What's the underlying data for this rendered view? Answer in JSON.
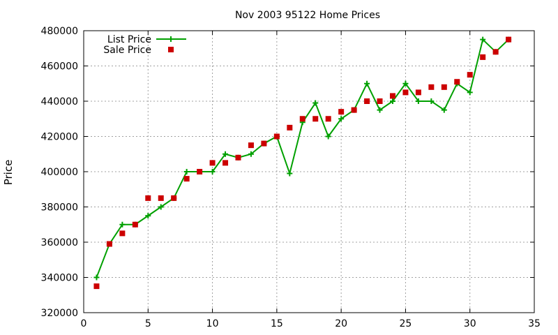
{
  "chart_data": {
    "type": "line",
    "title": "Nov 2003 95122 Home Prices",
    "xlabel": "",
    "ylabel": "Price",
    "xlim": [
      0,
      35
    ],
    "ylim": [
      320000,
      480000
    ],
    "x_ticks": [
      0,
      5,
      10,
      15,
      20,
      25,
      30,
      35
    ],
    "y_ticks": [
      320000,
      340000,
      360000,
      380000,
      400000,
      420000,
      440000,
      460000,
      480000
    ],
    "x_tick_labels": [
      "0",
      "5",
      "10",
      "15",
      "20",
      "25",
      "30",
      "35"
    ],
    "y_tick_labels": [
      "320000",
      "340000",
      "360000",
      "380000",
      "400000",
      "420000",
      "440000",
      "460000",
      "480000"
    ],
    "grid": true,
    "legend_position": "top-left",
    "series": [
      {
        "name": "List Price",
        "style": "line-with-plus-markers",
        "color": "#00a000",
        "x": [
          1,
          2,
          3,
          4,
          5,
          6,
          7,
          8,
          9,
          10,
          11,
          12,
          13,
          14,
          15,
          16,
          17,
          18,
          19,
          20,
          21,
          22,
          23,
          24,
          25,
          26,
          27,
          28,
          29,
          30,
          31,
          32,
          33
        ],
        "values": [
          340000,
          359000,
          370000,
          370000,
          375000,
          380000,
          385000,
          400000,
          400000,
          400000,
          410000,
          408000,
          410000,
          416000,
          420000,
          399000,
          428000,
          439000,
          420000,
          430000,
          435000,
          450000,
          435000,
          440000,
          450000,
          440000,
          440000,
          435000,
          450000,
          445000,
          475000,
          468000,
          475000
        ]
      },
      {
        "name": "Sale Price",
        "style": "square-markers",
        "color": "#cc0000",
        "x": [
          1,
          2,
          3,
          4,
          5,
          6,
          7,
          8,
          9,
          10,
          11,
          12,
          13,
          14,
          15,
          16,
          17,
          18,
          19,
          20,
          21,
          22,
          23,
          24,
          25,
          26,
          27,
          28,
          29,
          30,
          31,
          32,
          33
        ],
        "values": [
          335000,
          359000,
          365000,
          370000,
          385000,
          385000,
          385000,
          396000,
          400000,
          405000,
          405000,
          408000,
          415000,
          416000,
          420000,
          425000,
          430000,
          430000,
          430000,
          434000,
          435000,
          440000,
          440000,
          443000,
          445000,
          445000,
          448000,
          448000,
          451000,
          455000,
          465000,
          468000,
          475000
        ]
      }
    ]
  }
}
